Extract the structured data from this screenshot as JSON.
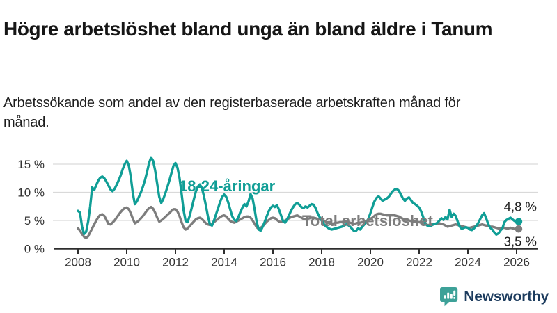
{
  "header": {
    "title": "Högre arbetslöshet bland unga än bland äldre i Tanum",
    "subtitle": "Arbetssökande som andel av den registerbaserade arbetskraften månad för månad."
  },
  "chart_data": {
    "type": "line",
    "title": "Högre arbetslöshet bland unga än bland äldre i Tanum",
    "subtitle": "Arbetssökande som andel av den registerbaserade arbetskraften månad för månad.",
    "grid": true,
    "legend_position": "inline-labels",
    "x_axis": {
      "start": "2008-01",
      "end": "2026-02",
      "freq": "monthly",
      "tick_labels": [
        "2008",
        "2010",
        "2012",
        "2014",
        "2016",
        "2018",
        "2020",
        "2022",
        "2024",
        "2026"
      ]
    },
    "y_axis": {
      "unit": "%",
      "ticks": [
        0,
        5,
        10,
        15
      ],
      "tick_labels": [
        "0 %",
        "5 %",
        "10 %",
        "15 %"
      ],
      "range": [
        0,
        17
      ]
    },
    "series": [
      {
        "name": "Total arbetslöshet",
        "label_text": "Total arbetslöshet",
        "end_label": "3,5 %",
        "end_value": 3.5,
        "color": "#7d7d7d",
        "values": [
          3.6,
          3.2,
          2.6,
          2.1,
          1.9,
          2.2,
          2.9,
          3.6,
          4.3,
          5.0,
          5.6,
          6.0,
          6.1,
          5.8,
          5.1,
          4.4,
          4.3,
          4.6,
          5.0,
          5.5,
          6.0,
          6.5,
          6.9,
          7.2,
          7.3,
          7.0,
          6.3,
          5.3,
          4.5,
          4.7,
          5.0,
          5.4,
          5.8,
          6.3,
          6.8,
          7.2,
          7.4,
          7.1,
          6.4,
          5.5,
          4.8,
          5.0,
          5.3,
          5.6,
          6.0,
          6.3,
          6.7,
          7.0,
          7.0,
          6.6,
          5.8,
          4.7,
          3.8,
          3.4,
          3.6,
          4.0,
          4.4,
          4.8,
          5.2,
          5.4,
          5.5,
          5.3,
          4.9,
          4.5,
          4.3,
          4.2,
          4.4,
          4.7,
          5.0,
          5.3,
          5.6,
          5.8,
          5.9,
          5.7,
          5.3,
          4.9,
          4.7,
          4.6,
          4.8,
          5.0,
          5.2,
          5.4,
          5.6,
          5.7,
          5.7,
          5.5,
          5.0,
          4.4,
          3.8,
          3.5,
          3.7,
          4.0,
          4.4,
          4.8,
          5.1,
          5.4,
          5.5,
          5.4,
          5.1,
          4.8,
          4.7,
          4.8,
          5.0,
          5.2,
          5.4,
          5.6,
          5.7,
          5.8,
          5.9,
          5.7,
          5.5,
          5.3,
          5.2,
          5.3,
          5.4,
          5.5,
          5.5,
          5.4,
          5.3,
          5.2,
          5.1,
          5.0,
          4.8,
          4.6,
          4.5,
          4.4,
          4.5,
          4.6,
          4.6,
          4.7,
          4.7,
          4.8,
          4.8,
          4.7,
          4.6,
          4.5,
          4.4,
          4.5,
          4.6,
          4.6,
          4.7,
          4.8,
          4.9,
          5.1,
          5.3,
          5.5,
          5.8,
          6.1,
          6.2,
          6.2,
          6.1,
          6.0,
          5.9,
          5.9,
          5.9,
          5.9,
          5.9,
          5.8,
          5.7,
          5.5,
          5.3,
          5.2,
          5.1,
          5.0,
          4.9,
          4.8,
          4.8,
          4.7,
          4.7,
          4.6,
          4.5,
          4.3,
          4.2,
          4.2,
          4.3,
          4.3,
          4.4,
          4.4,
          4.5,
          4.4,
          4.3,
          4.1,
          3.9,
          4.0,
          4.1,
          4.2,
          4.3,
          4.2,
          4.1,
          4.0,
          3.9,
          3.8,
          3.7,
          3.7,
          3.8,
          3.9,
          4.0,
          4.1,
          4.2,
          4.3,
          4.2,
          4.1,
          4.0,
          3.9,
          3.9,
          3.8,
          3.7,
          3.6,
          3.6,
          3.7,
          3.7,
          3.6,
          3.6,
          3.7,
          3.6,
          3.5,
          3.5,
          3.5
        ]
      },
      {
        "name": "18-24-åringar",
        "label_text": "18-24-åringar",
        "end_label": "4,8 %",
        "end_value": 4.8,
        "color": "#109e96",
        "values": [
          6.7,
          6.4,
          3.9,
          2.6,
          3.0,
          4.8,
          7.5,
          10.9,
          10.4,
          11.3,
          12.1,
          12.6,
          12.8,
          12.5,
          11.9,
          11.2,
          10.5,
          10.2,
          10.6,
          11.3,
          12.1,
          13.0,
          14.1,
          15.0,
          15.6,
          14.8,
          12.8,
          9.8,
          7.9,
          8.4,
          9.2,
          10.0,
          11.0,
          12.2,
          13.6,
          15.2,
          16.2,
          15.6,
          13.9,
          11.5,
          9.2,
          8.1,
          8.8,
          9.8,
          10.9,
          12.1,
          13.4,
          14.7,
          15.2,
          14.4,
          12.6,
          9.8,
          6.8,
          4.9,
          4.7,
          5.8,
          7.2,
          8.7,
          10.1,
          11.0,
          11.4,
          10.8,
          9.4,
          7.6,
          5.7,
          4.3,
          4.1,
          5.0,
          6.1,
          7.2,
          8.3,
          9.2,
          9.6,
          9.2,
          8.2,
          6.9,
          5.7,
          5.1,
          4.9,
          5.6,
          6.5,
          7.3,
          7.9,
          7.5,
          8.4,
          9.7,
          8.9,
          6.9,
          4.7,
          3.4,
          3.2,
          3.9,
          4.8,
          5.8,
          6.7,
          7.3,
          7.6,
          7.4,
          7.7,
          6.9,
          5.9,
          4.9,
          4.6,
          5.2,
          6.0,
          6.8,
          7.4,
          7.9,
          8.1,
          7.8,
          7.4,
          7.2,
          7.5,
          7.3,
          7.6,
          7.9,
          7.8,
          7.2,
          6.3,
          5.6,
          5.0,
          4.4,
          4.0,
          3.7,
          3.5,
          3.4,
          3.5,
          3.6,
          3.7,
          3.8,
          3.9,
          4.1,
          4.3,
          4.2,
          3.9,
          3.5,
          3.1,
          3.2,
          3.6,
          3.4,
          3.9,
          4.3,
          4.7,
          5.3,
          6.3,
          7.4,
          8.4,
          9.0,
          9.3,
          8.9,
          8.5,
          8.7,
          8.9,
          9.2,
          9.7,
          10.2,
          10.5,
          10.6,
          10.3,
          9.6,
          8.9,
          8.5,
          8.9,
          9.1,
          8.6,
          8.1,
          7.9,
          7.6,
          7.3,
          6.6,
          5.6,
          4.5,
          4.1,
          4.0,
          4.1,
          4.3,
          4.4,
          4.6,
          5.0,
          5.4,
          5.1,
          5.6,
          5.2,
          6.9,
          5.6,
          6.2,
          5.8,
          4.8,
          3.9,
          3.5,
          3.7,
          3.8,
          3.7,
          3.4,
          3.3,
          3.6,
          4.0,
          4.5,
          5.2,
          5.9,
          6.3,
          5.4,
          4.4,
          3.7,
          3.4,
          2.9,
          2.5,
          2.7,
          3.2,
          3.6,
          4.7,
          5.1,
          5.3,
          5.5,
          5.2,
          4.9,
          4.9,
          4.8
        ]
      }
    ],
    "colors": {
      "youth_line": "#109e96",
      "total_line": "#7d7d7d",
      "gridline": "#d9d9d9",
      "axis": "#2e2e2e",
      "axis_text": "#333333",
      "value_label_text": "#1d1d1d"
    }
  },
  "footer": {
    "brand": "Newsworthy",
    "logo_icon": "bar-chart-speech-bubble-icon",
    "brand_icon_color": "#3da198",
    "brand_text_color": "#1d3c5e"
  }
}
